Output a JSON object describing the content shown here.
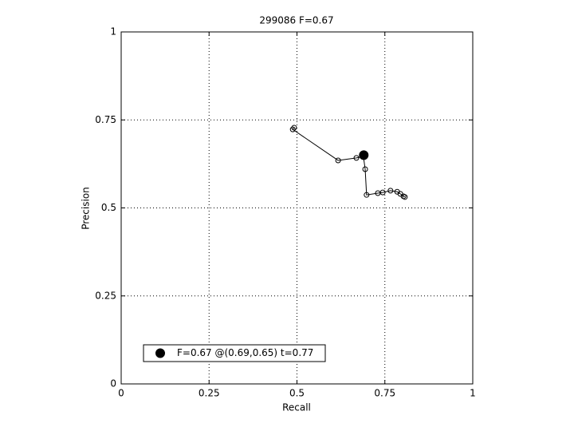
{
  "chart_data": {
    "type": "line",
    "title": "299086 F=0.67",
    "x_label": "Recall",
    "y_label": "Precision",
    "xlim": [
      0,
      1
    ],
    "ylim": [
      0,
      1
    ],
    "xticks": [
      0,
      0.25,
      0.5,
      0.75,
      1
    ],
    "yticks": [
      0,
      0.25,
      0.5,
      0.75,
      1
    ],
    "grid": true,
    "legend_position": "lower left",
    "series": [
      {
        "color": "#000000",
        "marker": "open-circle",
        "x": [
          0.492,
          0.488,
          0.617,
          0.669,
          0.689,
          0.694,
          0.698,
          0.73,
          0.744,
          0.766,
          0.785,
          0.794,
          0.803,
          0.807
        ],
        "values": [
          0.728,
          0.723,
          0.635,
          0.642,
          0.646,
          0.61,
          0.537,
          0.542,
          0.544,
          0.549,
          0.546,
          0.54,
          0.533,
          0.531
        ]
      },
      {
        "name": "F=0.67 @(0.69,0.65) t=0.77",
        "color": "#000000",
        "marker": "filled-circle",
        "x": [
          0.69
        ],
        "values": [
          0.65
        ]
      }
    ]
  }
}
